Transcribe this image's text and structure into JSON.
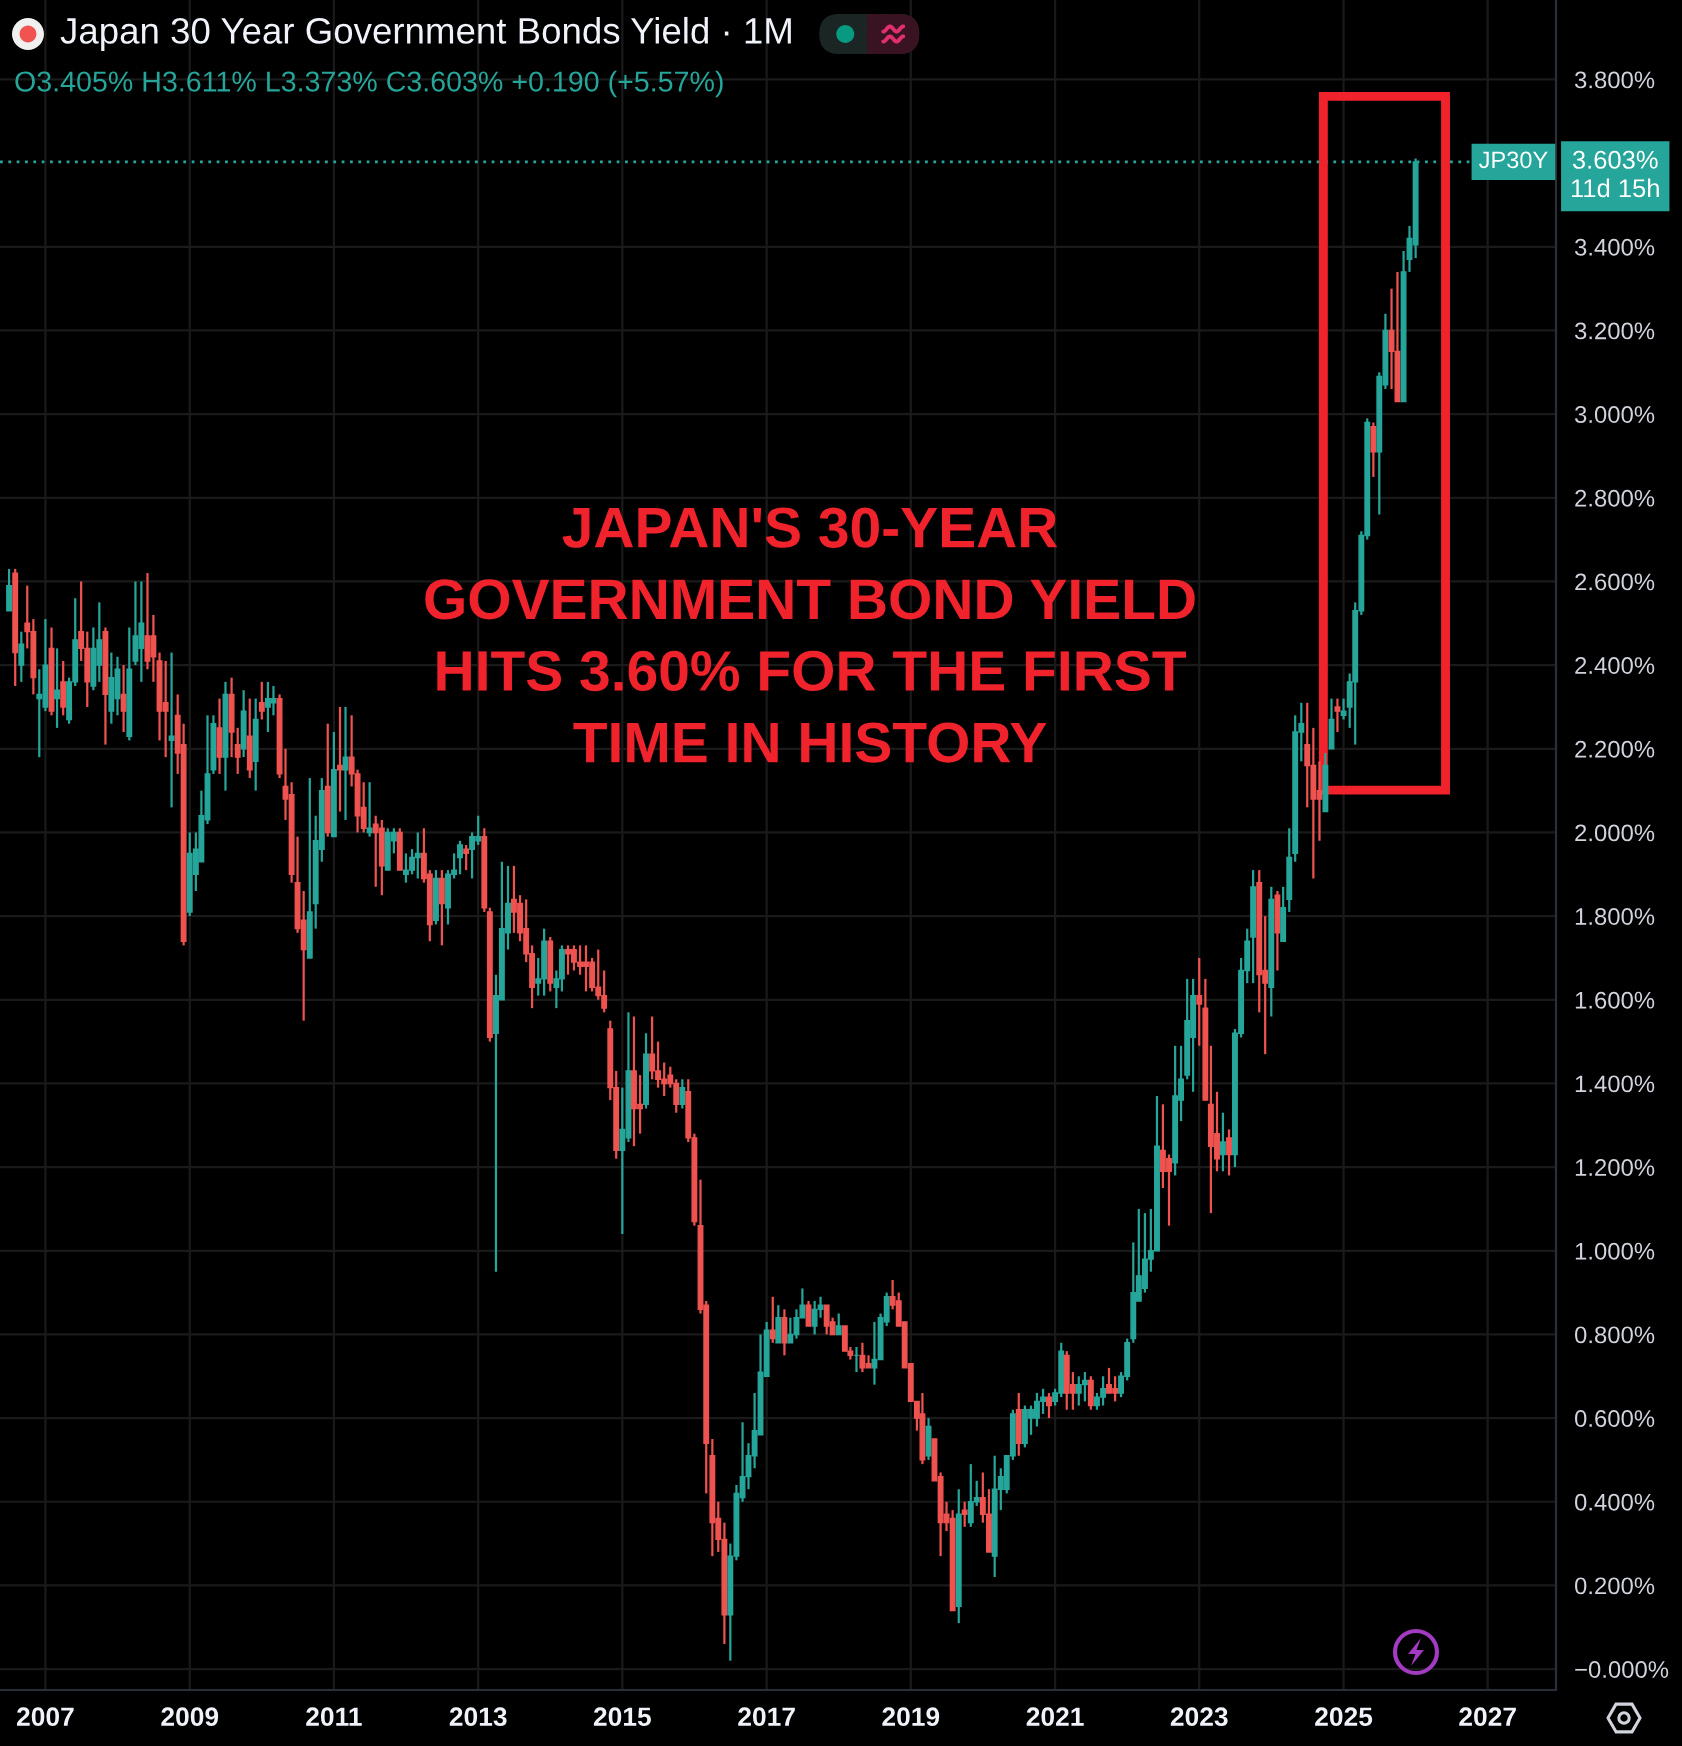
{
  "chart_data": {
    "type": "candlestick",
    "title": "Japan 30 Year Government Bonds Yield · 1M",
    "subtitle": "O3.405% H3.611% L3.373% C3.603% +0.190 (+5.57%)",
    "x": [
      "2006-07",
      "2006-08",
      "2006-09",
      "2006-10",
      "2006-11",
      "2006-12",
      "2007-01",
      "2007-02",
      "2007-03",
      "2007-04",
      "2007-05",
      "2007-06",
      "2007-07",
      "2007-08",
      "2007-09",
      "2007-10",
      "2007-11",
      "2007-12",
      "2008-01",
      "2008-02",
      "2008-03",
      "2008-04",
      "2008-05",
      "2008-06",
      "2008-07",
      "2008-08",
      "2008-09",
      "2008-10",
      "2008-11",
      "2008-12",
      "2009-01",
      "2009-02",
      "2009-03",
      "2009-04",
      "2009-05",
      "2009-06",
      "2009-07",
      "2009-08",
      "2009-09",
      "2009-10",
      "2009-11",
      "2009-12",
      "2010-01",
      "2010-02",
      "2010-03",
      "2010-04",
      "2010-05",
      "2010-06",
      "2010-07",
      "2010-08",
      "2010-09",
      "2010-10",
      "2010-11",
      "2010-12",
      "2011-01",
      "2011-02",
      "2011-03",
      "2011-04",
      "2011-05",
      "2011-06",
      "2011-07",
      "2011-08",
      "2011-09",
      "2011-10",
      "2011-11",
      "2011-12",
      "2012-01",
      "2012-02",
      "2012-03",
      "2012-04",
      "2012-05",
      "2012-06",
      "2012-07",
      "2012-08",
      "2012-09",
      "2012-10",
      "2012-11",
      "2012-12",
      "2013-01",
      "2013-02",
      "2013-03",
      "2013-04",
      "2013-05",
      "2013-06",
      "2013-07",
      "2013-08",
      "2013-09",
      "2013-10",
      "2013-11",
      "2013-12",
      "2014-01",
      "2014-02",
      "2014-03",
      "2014-04",
      "2014-05",
      "2014-06",
      "2014-07",
      "2014-08",
      "2014-09",
      "2014-10",
      "2014-11",
      "2014-12",
      "2015-01",
      "2015-02",
      "2015-03",
      "2015-04",
      "2015-05",
      "2015-06",
      "2015-07",
      "2015-08",
      "2015-09",
      "2015-10",
      "2015-11",
      "2015-12",
      "2016-01",
      "2016-02",
      "2016-03",
      "2016-04",
      "2016-05",
      "2016-06",
      "2016-07",
      "2016-08",
      "2016-09",
      "2016-10",
      "2016-11",
      "2016-12",
      "2017-01",
      "2017-02",
      "2017-03",
      "2017-04",
      "2017-05",
      "2017-06",
      "2017-07",
      "2017-08",
      "2017-09",
      "2017-10",
      "2017-11",
      "2017-12",
      "2018-01",
      "2018-02",
      "2018-03",
      "2018-04",
      "2018-05",
      "2018-06",
      "2018-07",
      "2018-08",
      "2018-09",
      "2018-10",
      "2018-11",
      "2018-12",
      "2019-01",
      "2019-02",
      "2019-03",
      "2019-04",
      "2019-05",
      "2019-06",
      "2019-07",
      "2019-08",
      "2019-09",
      "2019-10",
      "2019-11",
      "2019-12",
      "2020-01",
      "2020-02",
      "2020-03",
      "2020-04",
      "2020-05",
      "2020-06",
      "2020-07",
      "2020-08",
      "2020-09",
      "2020-10",
      "2020-11",
      "2020-12",
      "2021-01",
      "2021-02",
      "2021-03",
      "2021-04",
      "2021-05",
      "2021-06",
      "2021-07",
      "2021-08",
      "2021-09",
      "2021-10",
      "2021-11",
      "2021-12",
      "2022-01",
      "2022-02",
      "2022-03",
      "2022-04",
      "2022-05",
      "2022-06",
      "2022-07",
      "2022-08",
      "2022-09",
      "2022-10",
      "2022-11",
      "2022-12",
      "2023-01",
      "2023-02",
      "2023-03",
      "2023-04",
      "2023-05",
      "2023-06",
      "2023-07",
      "2023-08",
      "2023-09",
      "2023-10",
      "2023-11",
      "2023-12",
      "2024-01",
      "2024-02",
      "2024-03",
      "2024-04",
      "2024-05",
      "2024-06",
      "2024-07",
      "2024-08",
      "2024-09",
      "2024-10",
      "2024-11",
      "2024-12",
      "2025-01",
      "2025-02",
      "2025-03",
      "2025-04",
      "2025-05",
      "2025-06",
      "2025-07",
      "2025-08",
      "2025-09",
      "2025-10",
      "2025-11",
      "2025-12",
      "2026-01"
    ],
    "ohlc": [
      [
        2.53,
        2.63,
        2.53,
        2.59
      ],
      [
        2.62,
        2.63,
        2.35,
        2.43
      ],
      [
        2.4,
        2.48,
        2.36,
        2.45
      ],
      [
        2.5,
        2.59,
        2.44,
        2.48
      ],
      [
        2.48,
        2.51,
        2.33,
        2.37
      ],
      [
        2.32,
        2.39,
        2.18,
        2.33
      ],
      [
        2.3,
        2.51,
        2.29,
        2.4
      ],
      [
        2.44,
        2.49,
        2.28,
        2.29
      ],
      [
        2.32,
        2.44,
        2.25,
        2.34
      ],
      [
        2.36,
        2.41,
        2.28,
        2.3
      ],
      [
        2.27,
        2.37,
        2.26,
        2.36
      ],
      [
        2.36,
        2.56,
        2.35,
        2.46
      ],
      [
        2.48,
        2.6,
        2.41,
        2.44
      ],
      [
        2.44,
        2.48,
        2.3,
        2.36
      ],
      [
        2.35,
        2.49,
        2.34,
        2.44
      ],
      [
        2.4,
        2.55,
        2.36,
        2.46
      ],
      [
        2.48,
        2.49,
        2.21,
        2.33
      ],
      [
        2.29,
        2.43,
        2.26,
        2.37
      ],
      [
        2.32,
        2.42,
        2.28,
        2.39
      ],
      [
        2.33,
        2.4,
        2.24,
        2.29
      ],
      [
        2.23,
        2.49,
        2.22,
        2.39
      ],
      [
        2.41,
        2.6,
        2.4,
        2.47
      ],
      [
        2.44,
        2.6,
        2.36,
        2.5
      ],
      [
        2.47,
        2.62,
        2.39,
        2.41
      ],
      [
        2.47,
        2.52,
        2.36,
        2.42
      ],
      [
        2.41,
        2.43,
        2.22,
        2.29
      ],
      [
        2.31,
        2.41,
        2.18,
        2.29
      ],
      [
        2.22,
        2.43,
        2.06,
        2.23
      ],
      [
        2.28,
        2.33,
        2.14,
        2.19
      ],
      [
        2.21,
        2.26,
        1.73,
        1.74
      ],
      [
        1.81,
        2.0,
        1.8,
        1.95
      ],
      [
        1.9,
        2.0,
        1.86,
        1.96
      ],
      [
        1.93,
        2.1,
        1.93,
        2.04
      ],
      [
        2.03,
        2.28,
        2.02,
        2.14
      ],
      [
        2.15,
        2.28,
        2.14,
        2.26
      ],
      [
        2.25,
        2.32,
        2.14,
        2.18
      ],
      [
        2.18,
        2.36,
        2.1,
        2.33
      ],
      [
        2.33,
        2.37,
        2.18,
        2.24
      ],
      [
        2.21,
        2.25,
        2.14,
        2.18
      ],
      [
        2.2,
        2.34,
        2.18,
        2.29
      ],
      [
        2.23,
        2.32,
        2.13,
        2.15
      ],
      [
        2.17,
        2.32,
        2.1,
        2.27
      ],
      [
        2.31,
        2.36,
        2.27,
        2.29
      ],
      [
        2.3,
        2.36,
        2.24,
        2.32
      ],
      [
        2.31,
        2.35,
        2.28,
        2.32
      ],
      [
        2.32,
        2.33,
        2.13,
        2.14
      ],
      [
        2.11,
        2.2,
        2.03,
        2.08
      ],
      [
        2.09,
        2.12,
        1.88,
        1.9
      ],
      [
        1.88,
        1.99,
        1.76,
        1.77
      ],
      [
        1.79,
        1.86,
        1.55,
        1.72
      ],
      [
        1.7,
        2.13,
        1.7,
        1.81
      ],
      [
        1.83,
        2.04,
        1.77,
        1.98
      ],
      [
        1.96,
        2.13,
        1.93,
        2.1
      ],
      [
        2.11,
        2.26,
        1.99,
        2.0
      ],
      [
        1.99,
        2.24,
        1.99,
        2.15
      ],
      [
        2.16,
        2.3,
        2.05,
        2.15
      ],
      [
        2.15,
        2.3,
        2.03,
        2.18
      ],
      [
        2.18,
        2.28,
        2.11,
        2.14
      ],
      [
        2.14,
        2.15,
        2.0,
        2.04
      ],
      [
        2.06,
        2.12,
        2.0,
        2.01
      ],
      [
        2.0,
        2.12,
        1.99,
        2.01
      ],
      [
        2.02,
        2.04,
        1.87,
        2.0
      ],
      [
        2.01,
        2.03,
        1.85,
        1.92
      ],
      [
        1.91,
        2.01,
        1.91,
        2.0
      ],
      [
        1.98,
        2.01,
        1.95,
        2.0
      ],
      [
        2.0,
        2.01,
        1.91,
        1.91
      ],
      [
        1.9,
        1.95,
        1.88,
        1.91
      ],
      [
        1.91,
        1.96,
        1.9,
        1.94
      ],
      [
        1.94,
        2.0,
        1.89,
        1.95
      ],
      [
        1.95,
        2.01,
        1.88,
        1.89
      ],
      [
        1.9,
        1.91,
        1.74,
        1.78
      ],
      [
        1.79,
        1.91,
        1.78,
        1.89
      ],
      [
        1.89,
        1.91,
        1.73,
        1.83
      ],
      [
        1.82,
        1.91,
        1.78,
        1.9
      ],
      [
        1.9,
        1.95,
        1.89,
        1.91
      ],
      [
        1.94,
        1.98,
        1.9,
        1.97
      ],
      [
        1.96,
        1.97,
        1.91,
        1.95
      ],
      [
        1.96,
        2.0,
        1.89,
        1.99
      ],
      [
        1.98,
        2.04,
        1.97,
        1.99
      ],
      [
        1.99,
        2.01,
        1.81,
        1.82
      ],
      [
        1.81,
        1.82,
        1.5,
        1.51
      ],
      [
        1.52,
        1.66,
        0.95,
        1.61
      ],
      [
        1.6,
        1.93,
        1.6,
        1.77
      ],
      [
        1.76,
        1.92,
        1.72,
        1.83
      ],
      [
        1.84,
        1.92,
        1.76,
        1.81
      ],
      [
        1.83,
        1.85,
        1.74,
        1.76
      ],
      [
        1.77,
        1.84,
        1.69,
        1.71
      ],
      [
        1.71,
        1.73,
        1.58,
        1.63
      ],
      [
        1.64,
        1.7,
        1.61,
        1.65
      ],
      [
        1.65,
        1.77,
        1.61,
        1.74
      ],
      [
        1.74,
        1.75,
        1.62,
        1.64
      ],
      [
        1.63,
        1.67,
        1.58,
        1.65
      ],
      [
        1.65,
        1.73,
        1.62,
        1.72
      ],
      [
        1.72,
        1.73,
        1.66,
        1.71
      ],
      [
        1.72,
        1.73,
        1.67,
        1.69
      ],
      [
        1.69,
        1.73,
        1.66,
        1.68
      ],
      [
        1.69,
        1.73,
        1.62,
        1.68
      ],
      [
        1.69,
        1.7,
        1.62,
        1.63
      ],
      [
        1.63,
        1.72,
        1.6,
        1.61
      ],
      [
        1.61,
        1.67,
        1.57,
        1.58
      ],
      [
        1.53,
        1.55,
        1.36,
        1.39
      ],
      [
        1.39,
        1.43,
        1.22,
        1.24
      ],
      [
        1.24,
        1.39,
        1.04,
        1.29
      ],
      [
        1.27,
        1.57,
        1.26,
        1.43
      ],
      [
        1.43,
        1.56,
        1.25,
        1.34
      ],
      [
        1.35,
        1.42,
        1.28,
        1.34
      ],
      [
        1.35,
        1.52,
        1.34,
        1.47
      ],
      [
        1.47,
        1.56,
        1.41,
        1.43
      ],
      [
        1.43,
        1.5,
        1.39,
        1.41
      ],
      [
        1.41,
        1.45,
        1.37,
        1.4
      ],
      [
        1.42,
        1.44,
        1.39,
        1.4
      ],
      [
        1.4,
        1.41,
        1.33,
        1.35
      ],
      [
        1.35,
        1.41,
        1.34,
        1.39
      ],
      [
        1.38,
        1.41,
        1.26,
        1.27
      ],
      [
        1.27,
        1.28,
        1.06,
        1.07
      ],
      [
        1.06,
        1.17,
        0.85,
        0.86
      ],
      [
        0.87,
        0.88,
        0.42,
        0.54
      ],
      [
        0.51,
        0.55,
        0.27,
        0.35
      ],
      [
        0.36,
        0.4,
        0.28,
        0.31
      ],
      [
        0.31,
        0.35,
        0.06,
        0.13
      ],
      [
        0.13,
        0.3,
        0.02,
        0.27
      ],
      [
        0.27,
        0.44,
        0.26,
        0.42
      ],
      [
        0.41,
        0.59,
        0.4,
        0.46
      ],
      [
        0.46,
        0.54,
        0.43,
        0.51
      ],
      [
        0.51,
        0.66,
        0.48,
        0.57
      ],
      [
        0.56,
        0.8,
        0.56,
        0.71
      ],
      [
        0.7,
        0.83,
        0.7,
        0.81
      ],
      [
        0.81,
        0.89,
        0.78,
        0.79
      ],
      [
        0.78,
        0.87,
        0.78,
        0.84
      ],
      [
        0.84,
        0.86,
        0.75,
        0.78
      ],
      [
        0.78,
        0.84,
        0.78,
        0.8
      ],
      [
        0.8,
        0.86,
        0.79,
        0.84
      ],
      [
        0.84,
        0.91,
        0.84,
        0.87
      ],
      [
        0.87,
        0.88,
        0.82,
        0.82
      ],
      [
        0.82,
        0.88,
        0.8,
        0.86
      ],
      [
        0.86,
        0.89,
        0.84,
        0.87
      ],
      [
        0.87,
        0.87,
        0.8,
        0.82
      ],
      [
        0.83,
        0.84,
        0.8,
        0.8
      ],
      [
        0.8,
        0.85,
        0.8,
        0.82
      ],
      [
        0.82,
        0.82,
        0.76,
        0.76
      ],
      [
        0.76,
        0.77,
        0.74,
        0.75
      ],
      [
        0.75,
        0.77,
        0.71,
        0.75
      ],
      [
        0.75,
        0.78,
        0.71,
        0.72
      ],
      [
        0.73,
        0.75,
        0.72,
        0.72
      ],
      [
        0.72,
        0.83,
        0.68,
        0.74
      ],
      [
        0.74,
        0.85,
        0.74,
        0.84
      ],
      [
        0.83,
        0.9,
        0.82,
        0.89
      ],
      [
        0.89,
        0.93,
        0.86,
        0.87
      ],
      [
        0.88,
        0.9,
        0.82,
        0.82
      ],
      [
        0.83,
        0.83,
        0.72,
        0.72
      ],
      [
        0.73,
        0.73,
        0.64,
        0.64
      ],
      [
        0.64,
        0.64,
        0.57,
        0.6
      ],
      [
        0.61,
        0.66,
        0.49,
        0.5
      ],
      [
        0.51,
        0.6,
        0.5,
        0.58
      ],
      [
        0.55,
        0.55,
        0.45,
        0.45
      ],
      [
        0.46,
        0.47,
        0.27,
        0.35
      ],
      [
        0.37,
        0.4,
        0.33,
        0.35
      ],
      [
        0.36,
        0.38,
        0.14,
        0.14
      ],
      [
        0.15,
        0.43,
        0.11,
        0.37
      ],
      [
        0.38,
        0.4,
        0.34,
        0.37
      ],
      [
        0.35,
        0.49,
        0.34,
        0.4
      ],
      [
        0.4,
        0.45,
        0.39,
        0.41
      ],
      [
        0.41,
        0.47,
        0.35,
        0.37
      ],
      [
        0.37,
        0.43,
        0.28,
        0.28
      ],
      [
        0.27,
        0.51,
        0.22,
        0.43
      ],
      [
        0.43,
        0.48,
        0.38,
        0.46
      ],
      [
        0.43,
        0.51,
        0.42,
        0.51
      ],
      [
        0.51,
        0.62,
        0.5,
        0.61
      ],
      [
        0.62,
        0.66,
        0.51,
        0.54
      ],
      [
        0.54,
        0.63,
        0.53,
        0.62
      ],
      [
        0.6,
        0.63,
        0.56,
        0.62
      ],
      [
        0.6,
        0.66,
        0.58,
        0.64
      ],
      [
        0.64,
        0.67,
        0.61,
        0.65
      ],
      [
        0.65,
        0.66,
        0.6,
        0.63
      ],
      [
        0.64,
        0.67,
        0.63,
        0.66
      ],
      [
        0.66,
        0.78,
        0.65,
        0.76
      ],
      [
        0.75,
        0.76,
        0.62,
        0.66
      ],
      [
        0.68,
        0.71,
        0.62,
        0.66
      ],
      [
        0.66,
        0.7,
        0.63,
        0.68
      ],
      [
        0.68,
        0.71,
        0.64,
        0.69
      ],
      [
        0.69,
        0.7,
        0.62,
        0.63
      ],
      [
        0.63,
        0.66,
        0.62,
        0.65
      ],
      [
        0.65,
        0.7,
        0.63,
        0.67
      ],
      [
        0.68,
        0.72,
        0.66,
        0.66
      ],
      [
        0.67,
        0.7,
        0.64,
        0.66
      ],
      [
        0.66,
        0.71,
        0.65,
        0.7
      ],
      [
        0.7,
        0.79,
        0.69,
        0.78
      ],
      [
        0.79,
        1.02,
        0.78,
        0.9
      ],
      [
        0.88,
        1.1,
        0.88,
        0.94
      ],
      [
        0.91,
        1.09,
        0.9,
        0.98
      ],
      [
        0.98,
        1.1,
        0.95,
        1.0
      ],
      [
        1.0,
        1.37,
        1.0,
        1.25
      ],
      [
        1.24,
        1.35,
        1.15,
        1.19
      ],
      [
        1.22,
        1.23,
        1.06,
        1.19
      ],
      [
        1.21,
        1.49,
        1.18,
        1.37
      ],
      [
        1.36,
        1.49,
        1.31,
        1.41
      ],
      [
        1.42,
        1.65,
        1.41,
        1.55
      ],
      [
        1.51,
        1.65,
        1.38,
        1.61
      ],
      [
        1.61,
        1.7,
        1.49,
        1.59
      ],
      [
        1.58,
        1.65,
        1.36,
        1.36
      ],
      [
        1.35,
        1.49,
        1.09,
        1.25
      ],
      [
        1.28,
        1.38,
        1.19,
        1.22
      ],
      [
        1.23,
        1.33,
        1.19,
        1.26
      ],
      [
        1.27,
        1.29,
        1.18,
        1.23
      ],
      [
        1.23,
        1.53,
        1.2,
        1.52
      ],
      [
        1.52,
        1.7,
        1.51,
        1.67
      ],
      [
        1.67,
        1.77,
        1.64,
        1.74
      ],
      [
        1.75,
        1.91,
        1.64,
        1.87
      ],
      [
        1.88,
        1.91,
        1.57,
        1.66
      ],
      [
        1.67,
        1.8,
        1.47,
        1.64
      ],
      [
        1.63,
        1.87,
        1.56,
        1.84
      ],
      [
        1.85,
        1.86,
        1.67,
        1.76
      ],
      [
        1.74,
        1.87,
        1.74,
        1.82
      ],
      [
        1.84,
        2.01,
        1.81,
        1.94
      ],
      [
        1.95,
        2.28,
        1.93,
        2.24
      ],
      [
        2.24,
        2.31,
        2.17,
        2.26
      ],
      [
        2.21,
        2.31,
        2.06,
        2.16
      ],
      [
        2.16,
        2.25,
        1.89,
        2.08
      ],
      [
        2.1,
        2.17,
        1.98,
        2.08
      ],
      [
        2.05,
        2.19,
        2.05,
        2.16
      ],
      [
        2.2,
        2.32,
        2.2,
        2.27
      ],
      [
        2.3,
        2.32,
        2.24,
        2.29
      ],
      [
        2.28,
        2.32,
        2.27,
        2.29
      ],
      [
        2.3,
        2.38,
        2.25,
        2.36
      ],
      [
        2.36,
        2.55,
        2.21,
        2.53
      ],
      [
        2.53,
        2.72,
        2.52,
        2.71
      ],
      [
        2.71,
        2.99,
        2.7,
        2.98
      ],
      [
        2.97,
        2.98,
        2.85,
        2.91
      ],
      [
        2.91,
        3.1,
        2.76,
        3.09
      ],
      [
        3.07,
        3.24,
        3.06,
        3.2
      ],
      [
        3.2,
        3.3,
        3.06,
        3.15
      ],
      [
        3.15,
        3.34,
        3.03,
        3.03
      ],
      [
        3.03,
        3.39,
        3.03,
        3.34
      ],
      [
        3.37,
        3.45,
        3.34,
        3.42
      ],
      [
        3.405,
        3.611,
        3.373,
        3.603
      ]
    ],
    "xlim": [
      "2006-05-16",
      "2027-12-13"
    ],
    "xticks": [
      "2007",
      "2009",
      "2011",
      "2013",
      "2015",
      "2017",
      "2019",
      "2021",
      "2023",
      "2025",
      "2027"
    ],
    "ylim": [
      -0.05,
      3.99
    ],
    "yticks": [
      {
        "value": 0,
        "label": "−0.000%"
      },
      {
        "value": 0.2,
        "label": "0.200%"
      },
      {
        "value": 0.4,
        "label": "0.400%"
      },
      {
        "value": 0.6,
        "label": "0.600%"
      },
      {
        "value": 0.8,
        "label": "0.800%"
      },
      {
        "value": 1.0,
        "label": "1.000%"
      },
      {
        "value": 1.2,
        "label": "1.200%"
      },
      {
        "value": 1.4,
        "label": "1.400%"
      },
      {
        "value": 1.6,
        "label": "1.600%"
      },
      {
        "value": 1.8,
        "label": "1.800%"
      },
      {
        "value": 2.0,
        "label": "2.000%"
      },
      {
        "value": 2.2,
        "label": "2.200%"
      },
      {
        "value": 2.4,
        "label": "2.400%"
      },
      {
        "value": 2.6,
        "label": "2.600%"
      },
      {
        "value": 2.8,
        "label": "2.800%"
      },
      {
        "value": 3.0,
        "label": "3.000%"
      },
      {
        "value": 3.2,
        "label": "3.200%"
      },
      {
        "value": 3.4,
        "label": "3.400%"
      },
      {
        "value": 3.8,
        "label": "3.800%"
      }
    ],
    "grid": true,
    "ref_lines": [
      {
        "axis": "y",
        "value": 3.603,
        "label": "JP30Y",
        "color": "#26a69a",
        "line_style": "dotted"
      }
    ],
    "annotations": [
      "JAPAN'S 30-YEAR\nGOVERNMENT BOND YIELD\nHITS 3.60% FOR THE FIRST\nTIME IN HISTORY",
      "3.603%\n11d 15h"
    ]
  }
}
